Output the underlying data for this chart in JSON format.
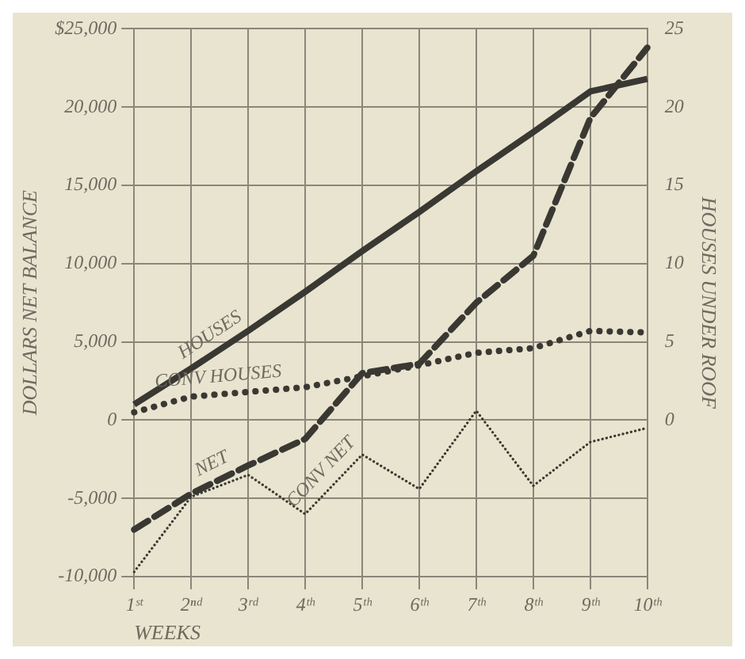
{
  "chart_data": {
    "type": "line",
    "xlabel": "WEEKS",
    "ylabel": "DOLLARS NET BALANCE",
    "y2label": "HOUSES UNDER ROOF",
    "categories": [
      "1ˢᵗ",
      "2ⁿᵈ",
      "3ʳᵈ",
      "4ᵗʰ",
      "5ᵗʰ",
      "6ᵗʰ",
      "7ᵗʰ",
      "8ᵗʰ",
      "9ᵗʰ",
      "10ᵗʰ"
    ],
    "series": [
      {
        "name": "HOUSES",
        "color": "#3a3833",
        "axis": "y2",
        "line_style": "solid",
        "values": [
          1,
          3.3,
          5.7,
          8.2,
          10.8,
          13.3,
          15.9,
          18.4,
          21,
          21.8
        ]
      },
      {
        "name": "CONV HOUSES",
        "color": "#3a3833",
        "axis": "y2",
        "line_style": "dotted",
        "values": [
          0.5,
          1.5,
          1.8,
          2.1,
          2.8,
          3.5,
          4.3,
          4.6,
          5.7,
          5.6
        ]
      },
      {
        "name": "NET",
        "color": "#3a3833",
        "line_style": "dashed",
        "values": [
          -7000,
          -4700,
          -2900,
          -1200,
          3000,
          3600,
          7500,
          10500,
          19300,
          23800
        ]
      },
      {
        "name": "CONV NET",
        "color": "#3a3833",
        "line_style": "dotted",
        "values": [
          -9700,
          -4900,
          -3500,
          -6000,
          -2200,
          -4400,
          600,
          -4200,
          -1400,
          -500
        ]
      }
    ],
    "ylim": [
      -10000,
      25000
    ],
    "yticks": [
      {
        "value": -10000,
        "label": "-10,000"
      },
      {
        "value": -5000,
        "label": "-5,000"
      },
      0,
      {
        "value": 5000,
        "label": "5,000"
      },
      {
        "value": 10000,
        "label": "10,000"
      },
      {
        "value": 15000,
        "label": "15,000"
      },
      {
        "value": 20000,
        "label": "20,000"
      },
      {
        "value": 25000,
        "label": "$25,000"
      }
    ],
    "y2lim": [
      -10,
      25
    ],
    "y2ticks": [
      0,
      5,
      10,
      15,
      20,
      25
    ],
    "grid": true,
    "legend": false,
    "marker": "none"
  }
}
